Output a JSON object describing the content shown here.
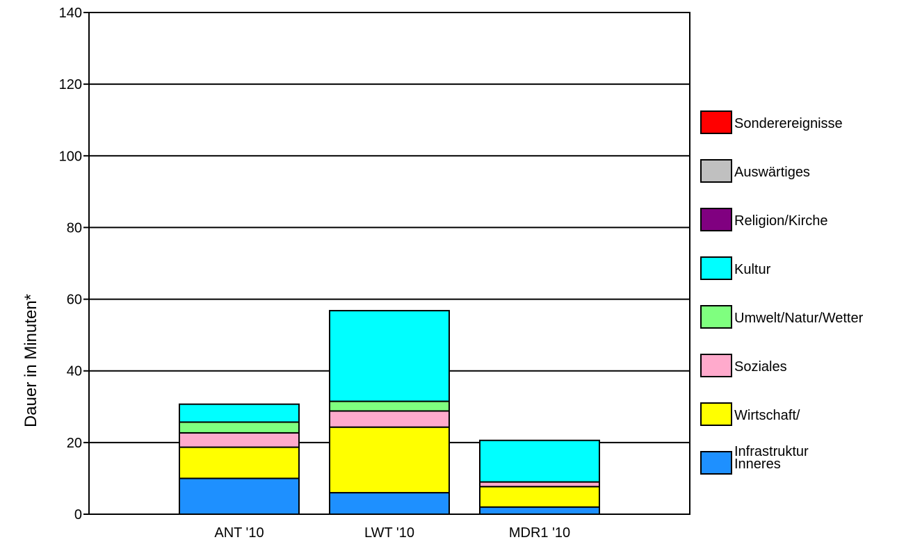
{
  "chart_data": {
    "type": "bar",
    "stacked": true,
    "title": "",
    "xlabel": "",
    "ylabel": "Dauer in Minuten*",
    "ylim": [
      0,
      140
    ],
    "yticks": [
      0,
      20,
      40,
      60,
      80,
      100,
      120,
      140
    ],
    "grid": true,
    "legend_position": "right",
    "categories": [
      "ANT '10",
      "LWT '10",
      "MDR1 '10"
    ],
    "series": [
      {
        "name": "Inneres",
        "color": "#1e90ff",
        "values": [
          10,
          6,
          2
        ]
      },
      {
        "name": "Wirtschaft/ Infrastruktur",
        "color": "#ffff00",
        "values": [
          8.7,
          18.3,
          5.7
        ]
      },
      {
        "name": "Soziales",
        "color": "#ffaacc",
        "values": [
          4,
          4.5,
          1.3
        ]
      },
      {
        "name": "Umwelt/Natur/Wetter",
        "color": "#7fff7f",
        "values": [
          3,
          2.7,
          0
        ]
      },
      {
        "name": "Kultur",
        "color": "#00ffff",
        "values": [
          5,
          25.3,
          11.6
        ]
      },
      {
        "name": "Religion/Kirche",
        "color": "#800080",
        "values": [
          0,
          0,
          0
        ]
      },
      {
        "name": "Auswärtiges",
        "color": "#c0c0c0",
        "values": [
          0,
          0,
          0
        ]
      },
      {
        "name": "Sonderereignisse",
        "color": "#ff0000",
        "values": [
          0,
          0,
          0
        ]
      }
    ],
    "legend": [
      {
        "name": "Sonderereignisse",
        "color": "#ff0000",
        "lines": [
          "Sonderereignisse"
        ]
      },
      {
        "name": "Auswärtiges",
        "color": "#c0c0c0",
        "lines": [
          "Auswärtiges"
        ]
      },
      {
        "name": "Religion/Kirche",
        "color": "#800080",
        "lines": [
          "Religion/Kirche"
        ]
      },
      {
        "name": "Kultur",
        "color": "#00ffff",
        "lines": [
          "Kultur"
        ]
      },
      {
        "name": "Umwelt/Natur/Wetter",
        "color": "#7fff7f",
        "lines": [
          "Umwelt/Natur/Wetter"
        ]
      },
      {
        "name": "Soziales",
        "color": "#ffaacc",
        "lines": [
          "Soziales"
        ]
      },
      {
        "name": "Wirtschaft/ Infrastruktur",
        "color": "#ffff00",
        "lines": [
          "Wirtschaft/",
          "Infrastruktur"
        ]
      },
      {
        "name": "Inneres",
        "color": "#1e90ff",
        "lines": [
          "Inneres"
        ]
      }
    ]
  }
}
